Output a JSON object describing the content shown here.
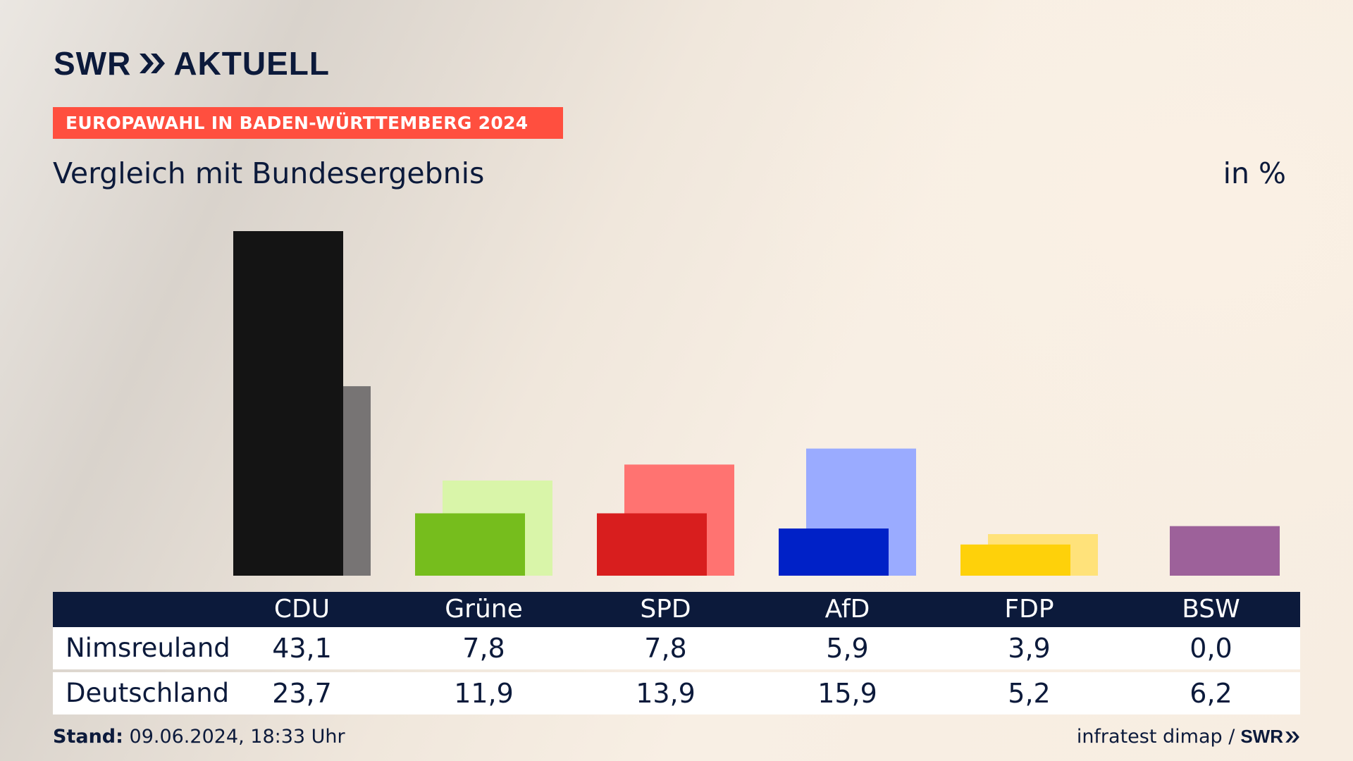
{
  "logo": {
    "text": "SWR",
    "suffix": "AKTUELL",
    "icon": "double-chevron-icon"
  },
  "banner": "EUROPAWAHL IN BADEN-WÜRTTEMBERG 2024",
  "subtitle": "Vergleich mit Bundesergebnis",
  "unit": "in %",
  "colors": {
    "navy": "#0c1a3b",
    "banner": "#ff4f3f"
  },
  "chart_data": {
    "type": "bar",
    "categories": [
      "CDU",
      "Grüne",
      "SPD",
      "AfD",
      "FDP",
      "BSW"
    ],
    "series": [
      {
        "name": "Nimsreuland",
        "values": [
          43.1,
          7.8,
          7.8,
          5.9,
          3.9,
          0.0
        ]
      },
      {
        "name": "Deutschland",
        "values": [
          23.7,
          11.9,
          13.9,
          15.9,
          5.2,
          6.2
        ]
      }
    ],
    "colors": {
      "Nimsreuland": [
        "#141414",
        "#76bd1d",
        "#d81e1e",
        "#0021c7",
        "#fed10a",
        "#9d619a"
      ],
      "Deutschland": [
        "#777474",
        "#d9f5a9",
        "#ff7371",
        "#9aabff",
        "#ffe27a",
        "#9d619a"
      ]
    },
    "ylim": [
      0,
      43.1
    ],
    "xlabel": "",
    "ylabel": ""
  },
  "table": {
    "rows": [
      {
        "label": "Nimsreuland",
        "values": [
          "43,1",
          "7,8",
          "7,8",
          "5,9",
          "3,9",
          "0,0"
        ]
      },
      {
        "label": "Deutschland",
        "values": [
          "23,7",
          "11,9",
          "13,9",
          "15,9",
          "5,2",
          "6,2"
        ]
      }
    ]
  },
  "footer": {
    "stand_label": "Stand:",
    "stand_value": "09.06.2024, 18:33 Uhr",
    "source": "infratest dimap /",
    "source_logo": "SWR"
  }
}
